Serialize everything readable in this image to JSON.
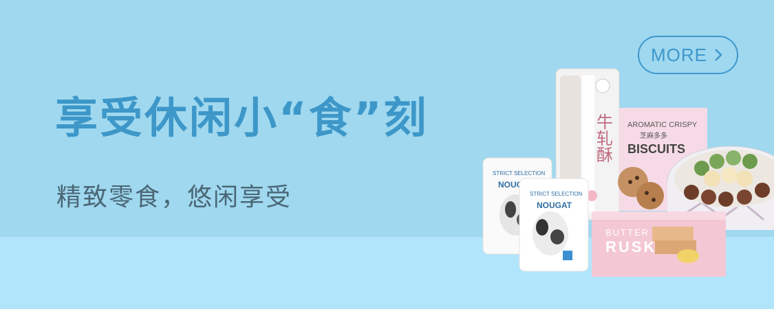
{
  "banner": {
    "headline": "享受休闲小“食”刻",
    "subline": "精致零食，悠闲享受",
    "more_label": "MORE",
    "colors": {
      "background_top": "#9fd8ef",
      "background_bottom": "#b1e5fb",
      "accent": "#3d97c8",
      "subtext": "#4a6675"
    }
  },
  "products": {
    "nougat_small": {
      "line1": "STRICT SELECTION",
      "line2": "NOUGAT"
    },
    "nougat_large": {
      "line1": "STRICT SELECTION",
      "line2": "NOUGAT"
    },
    "tube_label": "牛轧酥",
    "biscuits_box": {
      "line1": "AROMATIC CRISPY",
      "line2": "芝麻多多",
      "line3": "BISCUITS"
    },
    "rusk_box": {
      "line1": "BUTTER",
      "line2": "RUSK"
    }
  }
}
